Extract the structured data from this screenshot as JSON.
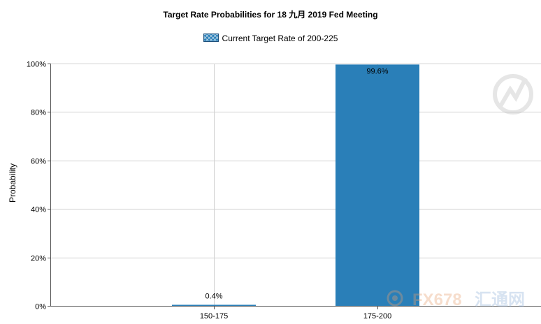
{
  "chart_data": {
    "type": "bar",
    "title": "Target Rate Probabilities for 18 九月 2019  Fed Meeting",
    "legend": "Current Target Rate of 200-225",
    "ylabel": "Probability",
    "xlabel": "",
    "categories": [
      "150-175",
      "175-200"
    ],
    "values": [
      0.4,
      99.6
    ],
    "data_labels": [
      "0.4%",
      "99.6%"
    ],
    "ylim": [
      0,
      100
    ],
    "yticks": [
      "0%",
      "20%",
      "40%",
      "60%",
      "80%",
      "100%"
    ],
    "grid": true,
    "legend_position": "top-center",
    "bar_color": "#2a7fb8"
  },
  "watermark": {
    "text": "FX678",
    "subtext": "汇通网"
  }
}
